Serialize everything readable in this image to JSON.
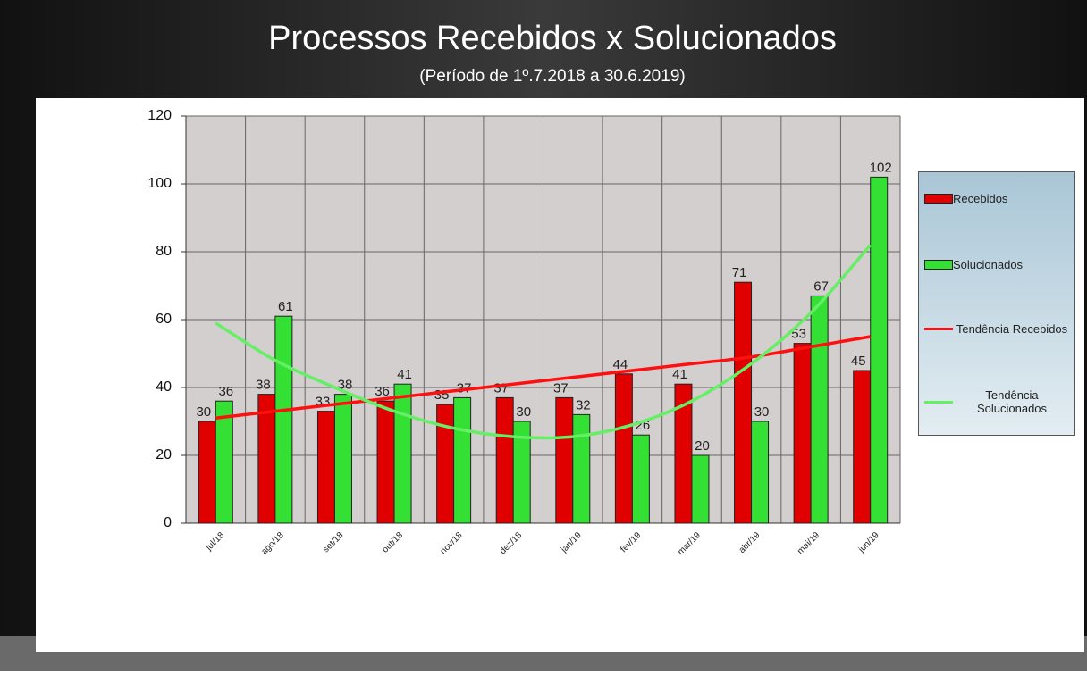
{
  "chart_data": {
    "type": "bar",
    "title": "Processos Recebidos x Solucionados",
    "subtitle": "(Período de 1º.7.2018  a  30.6.2019)",
    "categories": [
      "jul/18",
      "ago/18",
      "set/18",
      "out/18",
      "nov/18",
      "dez/18",
      "jan/19",
      "fev/19",
      "mar/19",
      "abr/19",
      "mai/19",
      "jun/19"
    ],
    "series": [
      {
        "name": "Recebidos",
        "color": "#e00000",
        "type": "bar",
        "values": [
          30,
          38,
          33,
          36,
          35,
          37,
          37,
          44,
          41,
          71,
          53,
          45
        ]
      },
      {
        "name": "Solucionados",
        "color": "#33e033",
        "type": "bar",
        "values": [
          36,
          61,
          38,
          41,
          37,
          30,
          32,
          26,
          20,
          30,
          67,
          102
        ]
      },
      {
        "name": "Tendência Recebidos",
        "color": "#ff1010",
        "type": "line",
        "values": [
          31,
          33,
          35,
          37,
          39,
          41,
          43,
          45,
          47,
          49,
          52,
          55
        ]
      },
      {
        "name": "Tendência Solucionados",
        "color": "#66ee66",
        "type": "line",
        "values": [
          59,
          48,
          40,
          33,
          28,
          25.5,
          25.5,
          29,
          36,
          47,
          62,
          82
        ]
      }
    ],
    "ylim": [
      0,
      120
    ],
    "yticks": [
      0,
      20,
      40,
      60,
      80,
      100,
      120
    ],
    "grid": true,
    "legend": "right"
  }
}
